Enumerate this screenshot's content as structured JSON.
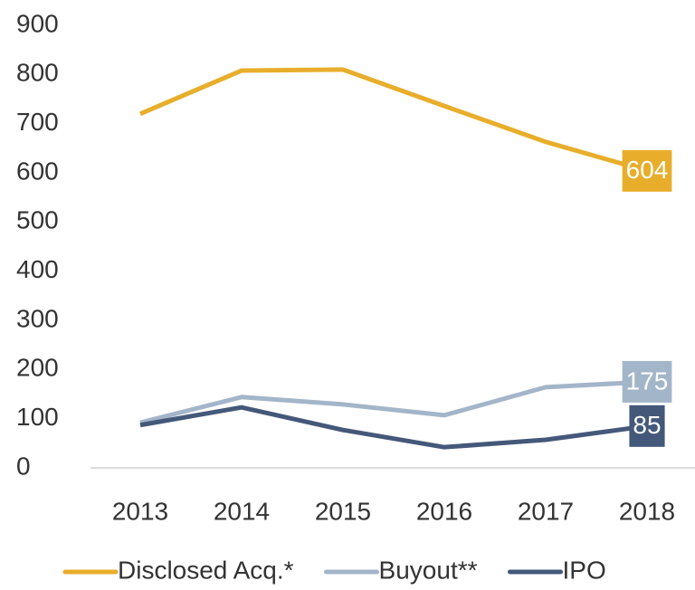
{
  "chart_data": {
    "type": "line",
    "categories": [
      "2013",
      "2014",
      "2015",
      "2016",
      "2017",
      "2018"
    ],
    "series": [
      {
        "name": "Disclosed Acq.*",
        "color": "#e8ae2b",
        "values": [
          720,
          808,
          810,
          736,
          663,
          604
        ]
      },
      {
        "name": "Buyout**",
        "color": "#a3b5c9",
        "values": [
          92,
          144,
          129,
          107,
          164,
          175
        ]
      },
      {
        "name": "IPO",
        "color": "#44587a",
        "values": [
          87,
          123,
          77,
          42,
          57,
          85
        ]
      }
    ],
    "ylim": [
      0,
      900
    ],
    "yticks": [
      0,
      100,
      200,
      300,
      400,
      500,
      600,
      700,
      800,
      900
    ],
    "legend": "bottom",
    "grid": false
  }
}
